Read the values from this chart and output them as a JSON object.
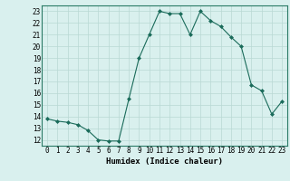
{
  "x": [
    0,
    1,
    2,
    3,
    4,
    5,
    6,
    7,
    8,
    9,
    10,
    11,
    12,
    13,
    14,
    15,
    16,
    17,
    18,
    19,
    20,
    21,
    22,
    23
  ],
  "y": [
    13.8,
    13.6,
    13.5,
    13.3,
    12.8,
    12.0,
    11.9,
    11.9,
    15.5,
    19.0,
    21.0,
    23.0,
    22.8,
    22.8,
    21.0,
    23.0,
    22.2,
    21.7,
    20.8,
    20.0,
    16.7,
    16.2,
    14.2,
    15.3
  ],
  "line_color": "#1a6b5a",
  "marker": "D",
  "marker_size": 2,
  "bg_color": "#d9f0ee",
  "grid_color": "#b8d8d4",
  "xlabel": "Humidex (Indice chaleur)",
  "ylim": [
    11.5,
    23.5
  ],
  "xlim": [
    -0.5,
    23.5
  ],
  "yticks": [
    12,
    13,
    14,
    15,
    16,
    17,
    18,
    19,
    20,
    21,
    22,
    23
  ],
  "xticks": [
    0,
    1,
    2,
    3,
    4,
    5,
    6,
    7,
    8,
    9,
    10,
    11,
    12,
    13,
    14,
    15,
    16,
    17,
    18,
    19,
    20,
    21,
    22,
    23
  ],
  "label_fontsize": 6.5,
  "tick_fontsize": 5.5
}
